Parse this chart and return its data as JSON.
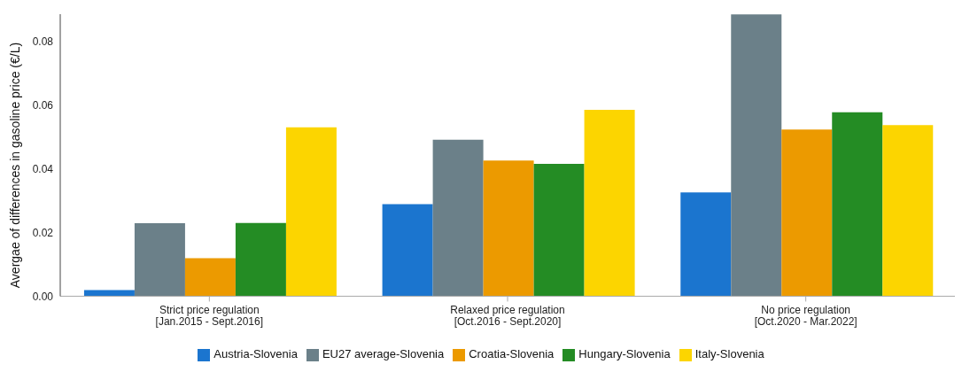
{
  "chart_data": {
    "type": "bar",
    "ylabel": "Avergae of differences in gasoline price (€/L)",
    "categories": [
      "Strict price regulation\n[Jan.2015 - Sept.2016]",
      "Relaxed price regulation\n[Oct.2016 - Sept.2020]",
      "No price regulation\n[Oct.2020 - Mar.2022]"
    ],
    "series": [
      {
        "name": "Austria-Slovenia",
        "color": "#1b75cf",
        "values": [
          0.0019,
          0.0289,
          0.0326
        ]
      },
      {
        "name": "EU27 average-Slovenia",
        "color": "#6b8089",
        "values": [
          0.0229,
          0.0491,
          0.0884
        ]
      },
      {
        "name": "Croatia-Slovenia",
        "color": "#ec9a00",
        "values": [
          0.0119,
          0.0426,
          0.0523
        ]
      },
      {
        "name": "Hungary-Slovenia",
        "color": "#248c24",
        "values": [
          0.023,
          0.0415,
          0.0577
        ]
      },
      {
        "name": "Italy-Slovenia",
        "color": "#fcd500",
        "values": [
          0.053,
          0.0585,
          0.0537
        ]
      }
    ],
    "ylim": [
      0,
      0.0885
    ],
    "yticks": [
      {
        "value": 0,
        "label": "0.00"
      },
      0.02,
      0.04,
      0.06,
      0.08
    ],
    "grid": false,
    "legend": "bottom"
  }
}
